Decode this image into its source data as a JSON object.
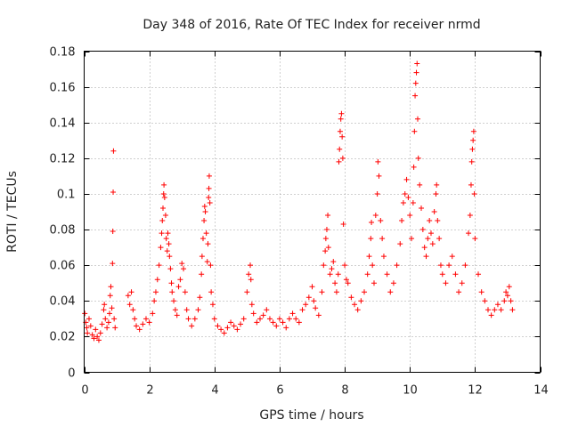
{
  "chart_data": {
    "type": "scatter",
    "title": "Day 348 of 2016, Rate Of TEC Index for receiver nrmd",
    "xlabel": "GPS time / hours",
    "ylabel": "ROTI / TECUs",
    "xlim": [
      0,
      14
    ],
    "ylim": [
      0,
      0.18
    ],
    "xticks": [
      0,
      2,
      4,
      6,
      8,
      10,
      12,
      14
    ],
    "xtick_labels": [
      "0",
      "2",
      "4",
      "6",
      "8",
      "10",
      "12",
      "14"
    ],
    "yticks": [
      0,
      0.02,
      0.04,
      0.06,
      0.08,
      0.1,
      0.12,
      0.14,
      0.16,
      0.18
    ],
    "ytick_labels": [
      "0",
      "0.02",
      "0.04",
      "0.06",
      "0.08",
      "0.1",
      "0.12",
      "0.14",
      "0.16",
      "0.18"
    ],
    "grid": true,
    "marker": "+",
    "color": "#ff0000",
    "series": [
      {
        "name": "ROTI",
        "points": [
          [
            0.02,
            0.033
          ],
          [
            0.05,
            0.028
          ],
          [
            0.08,
            0.025
          ],
          [
            0.1,
            0.022
          ],
          [
            0.15,
            0.03
          ],
          [
            0.2,
            0.026
          ],
          [
            0.25,
            0.021
          ],
          [
            0.3,
            0.019
          ],
          [
            0.35,
            0.024
          ],
          [
            0.4,
            0.02
          ],
          [
            0.45,
            0.018
          ],
          [
            0.5,
            0.022
          ],
          [
            0.55,
            0.027
          ],
          [
            0.6,
            0.035
          ],
          [
            0.62,
            0.038
          ],
          [
            0.65,
            0.03
          ],
          [
            0.7,
            0.025
          ],
          [
            0.75,
            0.028
          ],
          [
            0.78,
            0.033
          ],
          [
            0.8,
            0.043
          ],
          [
            0.82,
            0.048
          ],
          [
            0.85,
            0.036
          ],
          [
            0.87,
            0.061
          ],
          [
            0.88,
            0.079
          ],
          [
            0.89,
            0.101
          ],
          [
            0.9,
            0.124
          ],
          [
            0.92,
            0.03
          ],
          [
            0.95,
            0.025
          ],
          [
            1.35,
            0.043
          ],
          [
            1.4,
            0.038
          ],
          [
            1.45,
            0.045
          ],
          [
            1.5,
            0.035
          ],
          [
            1.55,
            0.03
          ],
          [
            1.6,
            0.026
          ],
          [
            1.7,
            0.024
          ],
          [
            1.8,
            0.027
          ],
          [
            1.9,
            0.03
          ],
          [
            2.0,
            0.028
          ],
          [
            2.1,
            0.033
          ],
          [
            2.15,
            0.04
          ],
          [
            2.2,
            0.045
          ],
          [
            2.25,
            0.052
          ],
          [
            2.3,
            0.06
          ],
          [
            2.35,
            0.07
          ],
          [
            2.38,
            0.078
          ],
          [
            2.4,
            0.085
          ],
          [
            2.42,
            0.092
          ],
          [
            2.44,
            0.1
          ],
          [
            2.45,
            0.105
          ],
          [
            2.47,
            0.098
          ],
          [
            2.5,
            0.088
          ],
          [
            2.52,
            0.075
          ],
          [
            2.55,
            0.068
          ],
          [
            2.57,
            0.078
          ],
          [
            2.6,
            0.072
          ],
          [
            2.62,
            0.065
          ],
          [
            2.65,
            0.058
          ],
          [
            2.68,
            0.05
          ],
          [
            2.7,
            0.045
          ],
          [
            2.75,
            0.04
          ],
          [
            2.8,
            0.035
          ],
          [
            2.85,
            0.032
          ],
          [
            2.9,
            0.048
          ],
          [
            2.95,
            0.052
          ],
          [
            3.0,
            0.061
          ],
          [
            3.05,
            0.058
          ],
          [
            3.1,
            0.045
          ],
          [
            3.15,
            0.035
          ],
          [
            3.2,
            0.03
          ],
          [
            3.3,
            0.026
          ],
          [
            3.4,
            0.03
          ],
          [
            3.5,
            0.035
          ],
          [
            3.55,
            0.042
          ],
          [
            3.6,
            0.055
          ],
          [
            3.62,
            0.065
          ],
          [
            3.65,
            0.075
          ],
          [
            3.68,
            0.085
          ],
          [
            3.7,
            0.093
          ],
          [
            3.72,
            0.09
          ],
          [
            3.75,
            0.078
          ],
          [
            3.78,
            0.062
          ],
          [
            3.8,
            0.072
          ],
          [
            3.82,
            0.098
          ],
          [
            3.83,
            0.103
          ],
          [
            3.84,
            0.11
          ],
          [
            3.86,
            0.095
          ],
          [
            3.88,
            0.06
          ],
          [
            3.9,
            0.045
          ],
          [
            3.95,
            0.038
          ],
          [
            4.0,
            0.03
          ],
          [
            4.1,
            0.026
          ],
          [
            4.2,
            0.024
          ],
          [
            4.3,
            0.022
          ],
          [
            4.4,
            0.025
          ],
          [
            4.5,
            0.028
          ],
          [
            4.6,
            0.026
          ],
          [
            4.7,
            0.024
          ],
          [
            4.8,
            0.027
          ],
          [
            4.9,
            0.03
          ],
          [
            5.0,
            0.045
          ],
          [
            5.05,
            0.055
          ],
          [
            5.1,
            0.06
          ],
          [
            5.12,
            0.052
          ],
          [
            5.15,
            0.038
          ],
          [
            5.2,
            0.033
          ],
          [
            5.3,
            0.028
          ],
          [
            5.4,
            0.03
          ],
          [
            5.5,
            0.032
          ],
          [
            5.6,
            0.035
          ],
          [
            5.7,
            0.03
          ],
          [
            5.8,
            0.028
          ],
          [
            5.9,
            0.026
          ],
          [
            6.0,
            0.03
          ],
          [
            6.1,
            0.028
          ],
          [
            6.2,
            0.025
          ],
          [
            6.3,
            0.03
          ],
          [
            6.4,
            0.033
          ],
          [
            6.5,
            0.03
          ],
          [
            6.6,
            0.028
          ],
          [
            6.7,
            0.035
          ],
          [
            6.8,
            0.038
          ],
          [
            6.9,
            0.042
          ],
          [
            7.0,
            0.048
          ],
          [
            7.05,
            0.04
          ],
          [
            7.1,
            0.036
          ],
          [
            7.2,
            0.032
          ],
          [
            7.3,
            0.045
          ],
          [
            7.35,
            0.06
          ],
          [
            7.4,
            0.068
          ],
          [
            7.42,
            0.075
          ],
          [
            7.45,
            0.08
          ],
          [
            7.48,
            0.088
          ],
          [
            7.5,
            0.07
          ],
          [
            7.55,
            0.055
          ],
          [
            7.6,
            0.058
          ],
          [
            7.65,
            0.062
          ],
          [
            7.7,
            0.05
          ],
          [
            7.75,
            0.045
          ],
          [
            7.8,
            0.055
          ],
          [
            7.82,
            0.118
          ],
          [
            7.84,
            0.125
          ],
          [
            7.86,
            0.135
          ],
          [
            7.88,
            0.142
          ],
          [
            7.9,
            0.145
          ],
          [
            7.92,
            0.132
          ],
          [
            7.94,
            0.12
          ],
          [
            7.96,
            0.083
          ],
          [
            8.0,
            0.06
          ],
          [
            8.05,
            0.052
          ],
          [
            8.1,
            0.05
          ],
          [
            8.2,
            0.042
          ],
          [
            8.3,
            0.038
          ],
          [
            8.4,
            0.035
          ],
          [
            8.5,
            0.04
          ],
          [
            8.6,
            0.045
          ],
          [
            8.7,
            0.055
          ],
          [
            8.75,
            0.065
          ],
          [
            8.8,
            0.075
          ],
          [
            8.82,
            0.084
          ],
          [
            8.85,
            0.06
          ],
          [
            8.9,
            0.05
          ],
          [
            8.95,
            0.088
          ],
          [
            9.0,
            0.1
          ],
          [
            9.02,
            0.118
          ],
          [
            9.05,
            0.11
          ],
          [
            9.1,
            0.085
          ],
          [
            9.15,
            0.075
          ],
          [
            9.2,
            0.065
          ],
          [
            9.3,
            0.055
          ],
          [
            9.4,
            0.045
          ],
          [
            9.5,
            0.05
          ],
          [
            9.6,
            0.06
          ],
          [
            9.7,
            0.072
          ],
          [
            9.75,
            0.085
          ],
          [
            9.8,
            0.095
          ],
          [
            9.85,
            0.1
          ],
          [
            9.9,
            0.108
          ],
          [
            9.95,
            0.098
          ],
          [
            10.0,
            0.088
          ],
          [
            10.05,
            0.075
          ],
          [
            10.1,
            0.095
          ],
          [
            10.12,
            0.115
          ],
          [
            10.14,
            0.135
          ],
          [
            10.16,
            0.155
          ],
          [
            10.18,
            0.162
          ],
          [
            10.2,
            0.168
          ],
          [
            10.22,
            0.173
          ],
          [
            10.24,
            0.142
          ],
          [
            10.26,
            0.12
          ],
          [
            10.3,
            0.105
          ],
          [
            10.35,
            0.092
          ],
          [
            10.4,
            0.08
          ],
          [
            10.45,
            0.07
          ],
          [
            10.5,
            0.065
          ],
          [
            10.55,
            0.075
          ],
          [
            10.6,
            0.085
          ],
          [
            10.65,
            0.078
          ],
          [
            10.7,
            0.072
          ],
          [
            10.75,
            0.09
          ],
          [
            10.8,
            0.1
          ],
          [
            10.82,
            0.105
          ],
          [
            10.85,
            0.085
          ],
          [
            10.9,
            0.075
          ],
          [
            10.95,
            0.06
          ],
          [
            11.0,
            0.055
          ],
          [
            11.1,
            0.05
          ],
          [
            11.2,
            0.06
          ],
          [
            11.3,
            0.065
          ],
          [
            11.4,
            0.055
          ],
          [
            11.5,
            0.045
          ],
          [
            11.6,
            0.05
          ],
          [
            11.7,
            0.06
          ],
          [
            11.8,
            0.078
          ],
          [
            11.85,
            0.088
          ],
          [
            11.88,
            0.105
          ],
          [
            11.9,
            0.118
          ],
          [
            11.92,
            0.125
          ],
          [
            11.94,
            0.13
          ],
          [
            11.96,
            0.135
          ],
          [
            11.98,
            0.1
          ],
          [
            12.0,
            0.075
          ],
          [
            12.1,
            0.055
          ],
          [
            12.2,
            0.045
          ],
          [
            12.3,
            0.04
          ],
          [
            12.4,
            0.035
          ],
          [
            12.5,
            0.032
          ],
          [
            12.6,
            0.035
          ],
          [
            12.7,
            0.038
          ],
          [
            12.8,
            0.035
          ],
          [
            12.9,
            0.04
          ],
          [
            12.95,
            0.045
          ],
          [
            13.0,
            0.043
          ],
          [
            13.05,
            0.048
          ],
          [
            13.1,
            0.04
          ],
          [
            13.15,
            0.035
          ]
        ]
      }
    ]
  }
}
